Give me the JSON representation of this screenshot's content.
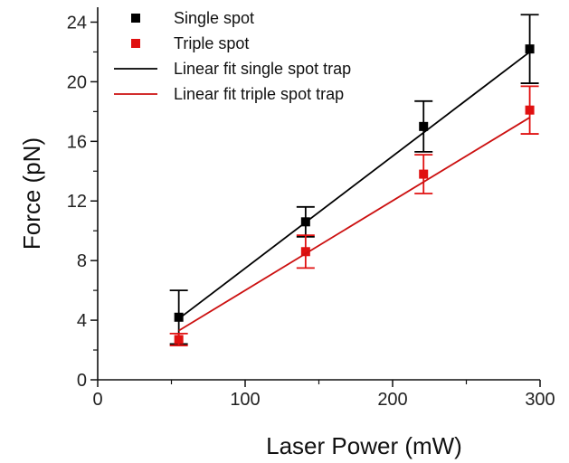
{
  "chart_data": {
    "type": "scatter",
    "xlabel": "Laser Power (mW)",
    "ylabel": "Force (pN)",
    "xlim": [
      0,
      300
    ],
    "ylim": [
      0,
      25
    ],
    "xticks": [
      0,
      100,
      200,
      300
    ],
    "yticks": [
      0,
      4,
      8,
      12,
      16,
      20,
      24
    ],
    "grid": false,
    "legend_position": "top-left",
    "series": [
      {
        "name": "Single spot",
        "kind": "points",
        "color": "#000000",
        "marker": "square",
        "x": [
          55,
          141,
          221,
          293
        ],
        "y": [
          4.2,
          10.6,
          17.0,
          22.2
        ],
        "err": [
          1.8,
          1.0,
          1.7,
          2.3
        ]
      },
      {
        "name": "Triple spot",
        "kind": "points",
        "color": "#e01010",
        "marker": "square",
        "x": [
          55,
          141,
          221,
          293
        ],
        "y": [
          2.7,
          8.6,
          13.8,
          18.1
        ],
        "err": [
          0.4,
          1.1,
          1.3,
          1.6
        ]
      },
      {
        "name": "Linear fit single spot trap",
        "kind": "line",
        "color": "#000000",
        "x": [
          55,
          293
        ],
        "y": [
          4.1,
          22.0
        ]
      },
      {
        "name": "Linear fit triple spot trap",
        "kind": "line",
        "color": "#cc1010",
        "x": [
          55,
          293
        ],
        "y": [
          3.3,
          17.6
        ]
      }
    ]
  }
}
